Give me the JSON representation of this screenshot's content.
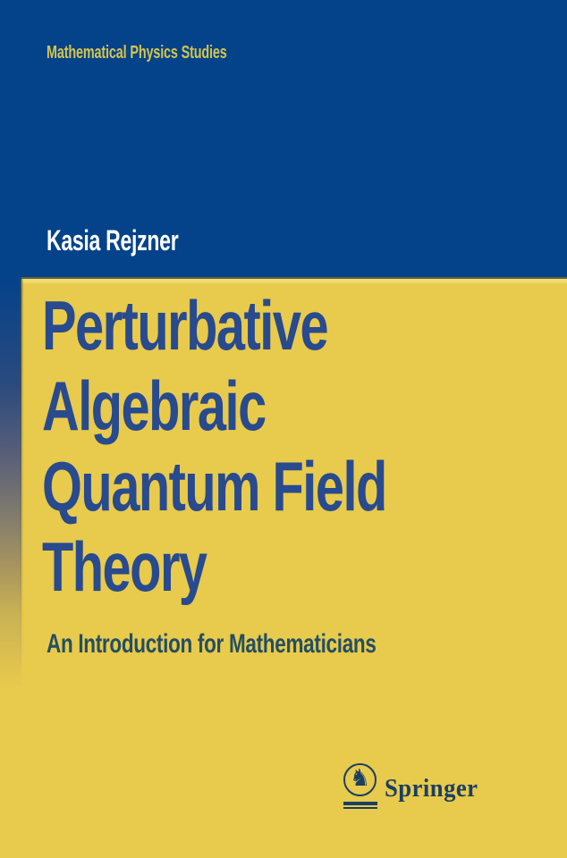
{
  "cover": {
    "series_title": "Mathematical Physics Studies",
    "author": "Kasia Rejzner",
    "title_lines": [
      "Perturbative",
      "Algebraic",
      "Quantum Field",
      "Theory"
    ],
    "title_full": "Perturbative Algebraic Quantum Field Theory",
    "subtitle": "An Introduction for Mathematicians",
    "publisher": {
      "name": "Springer",
      "icon": "springer-horse-icon",
      "icon_glyph": "♞"
    },
    "colors": {
      "top_background": "#04428a",
      "bottom_background": "#e8ca4c",
      "series_text": "#d3c54e",
      "author_text": "#ffffff",
      "title_text": "#284a8e",
      "subtitle_text": "#234f63",
      "publisher_text": "#1b3f63"
    }
  }
}
